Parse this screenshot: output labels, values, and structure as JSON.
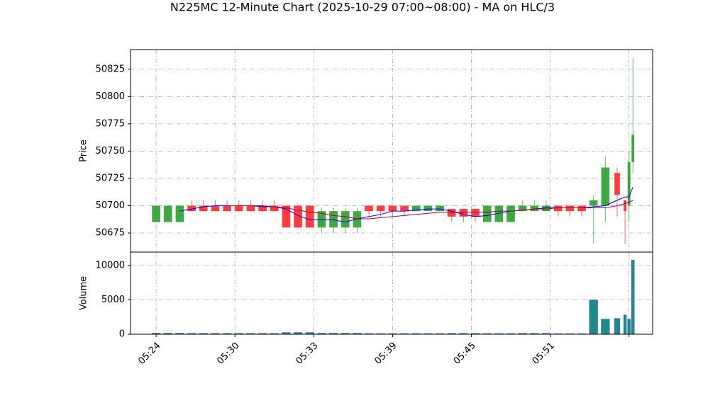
{
  "chart_data": {
    "type": "candlestick",
    "title": "N225MC 12-Minute Chart (2025-10-29 07:00~08:00) - MA on HLC/3",
    "y_label": "Price",
    "x": [
      0,
      3,
      6,
      9,
      12,
      15,
      18,
      21,
      24,
      27,
      30,
      33,
      36,
      39,
      42,
      45,
      48,
      51,
      54,
      57,
      60,
      63,
      66,
      69,
      72,
      75,
      78,
      81,
      84,
      87,
      90,
      93,
      96,
      99,
      102,
      105,
      108,
      111,
      114,
      117,
      119,
      120,
      121
    ],
    "open": [
      50685,
      50685,
      50685,
      50700,
      50700,
      50700,
      50700,
      50700,
      50700,
      50700,
      50700,
      50700,
      50700,
      50700,
      50680,
      50680,
      50680,
      50680,
      50700,
      50700,
      50700,
      50700,
      50695,
      50695,
      50695,
      50697,
      50697,
      50697,
      50685,
      50685,
      50685,
      50695,
      50695,
      50695,
      50700,
      50700,
      50700,
      50700,
      50700,
      50730,
      50705,
      50700,
      50740
    ],
    "high": [
      50700,
      50700,
      50700,
      50705,
      50705,
      50705,
      50705,
      50705,
      50705,
      50705,
      50705,
      50700,
      50700,
      50700,
      50698,
      50698,
      50698,
      50698,
      50700,
      50700,
      50700,
      50700,
      50700,
      50700,
      50700,
      50697,
      50697,
      50697,
      50700,
      50700,
      50700,
      50705,
      50705,
      50705,
      50700,
      50700,
      50700,
      50710,
      50745,
      50735,
      50705,
      50750,
      50835
    ],
    "low": [
      50685,
      50685,
      50685,
      50695,
      50695,
      50695,
      50695,
      50695,
      50695,
      50695,
      50695,
      50680,
      50680,
      50680,
      50675,
      50675,
      50675,
      50675,
      50690,
      50690,
      50690,
      50690,
      50695,
      50695,
      50695,
      50685,
      50685,
      50685,
      50685,
      50685,
      50685,
      50695,
      50695,
      50695,
      50690,
      50690,
      50690,
      50665,
      50685,
      50690,
      50665,
      50685,
      50730
    ],
    "close": [
      50700,
      50700,
      50700,
      50695,
      50695,
      50695,
      50695,
      50695,
      50695,
      50695,
      50695,
      50680,
      50680,
      50680,
      50695,
      50695,
      50695,
      50695,
      50695,
      50695,
      50695,
      50695,
      50700,
      50700,
      50700,
      50690,
      50690,
      50690,
      50700,
      50700,
      50700,
      50700,
      50700,
      50700,
      50695,
      50695,
      50695,
      50705,
      50735,
      50710,
      50695,
      50740,
      50765
    ],
    "up_color": "#2ca02c",
    "down_color": "#ff2a2a",
    "series": [
      {
        "color": "#0000ff",
        "values": [
          null,
          null,
          50695,
          50697,
          50699,
          50700,
          50700,
          50700,
          50700,
          50699,
          50699,
          50697,
          50691,
          50687,
          50687,
          50687,
          50685,
          50688,
          50690,
          50692,
          50695,
          50695,
          50696,
          50697,
          50697,
          50695,
          50692,
          50690,
          50691,
          50693,
          50695,
          50696,
          50697,
          50698,
          50698,
          50698,
          50698,
          50699,
          50700,
          50705,
          50708,
          50708,
          50717
        ]
      },
      {
        "color": "#b0003a",
        "values": [
          null,
          null,
          null,
          null,
          null,
          null,
          50700,
          50700,
          50700,
          50700,
          50699,
          50698,
          50696,
          50694,
          50693,
          50691,
          50690,
          50688,
          50688,
          50689,
          50690,
          50691,
          50692,
          50693,
          50694,
          50694,
          50694,
          50694,
          50694,
          50695,
          50695,
          50696,
          50697,
          50697,
          50698,
          50698,
          50698,
          50698,
          50698,
          50700,
          50702,
          50703,
          50705
        ]
      }
    ],
    "xlim": [
      -6.5,
      126
    ],
    "xticks": [
      {
        "value": 0,
        "label": "05:24"
      },
      {
        "value": 20,
        "label": "05:30"
      },
      {
        "value": 40,
        "label": "05:33"
      },
      {
        "value": 60,
        "label": "05:39"
      },
      {
        "value": 80,
        "label": "05:45"
      },
      {
        "value": 100,
        "label": "05:51"
      },
      {
        "value": 120,
        "label": null
      }
    ],
    "ylim": [
      50657.5,
      50843
    ],
    "yticks": [
      50675,
      50700,
      50725,
      50750,
      50775,
      50800,
      50825
    ],
    "grid": true,
    "volume": {
      "type": "bar",
      "y_label": "Volume",
      "color": "#1f8a8a",
      "values": [
        150,
        150,
        150,
        120,
        120,
        120,
        120,
        120,
        120,
        120,
        120,
        250,
        250,
        250,
        150,
        150,
        150,
        150,
        100,
        100,
        100,
        100,
        100,
        100,
        100,
        120,
        120,
        120,
        100,
        100,
        100,
        130,
        130,
        130,
        80,
        80,
        80,
        5000,
        2200,
        2300,
        2800,
        2200,
        10800
      ],
      "ylim": [
        0,
        11960
      ],
      "yticks": [
        0,
        5000,
        10000
      ]
    }
  }
}
